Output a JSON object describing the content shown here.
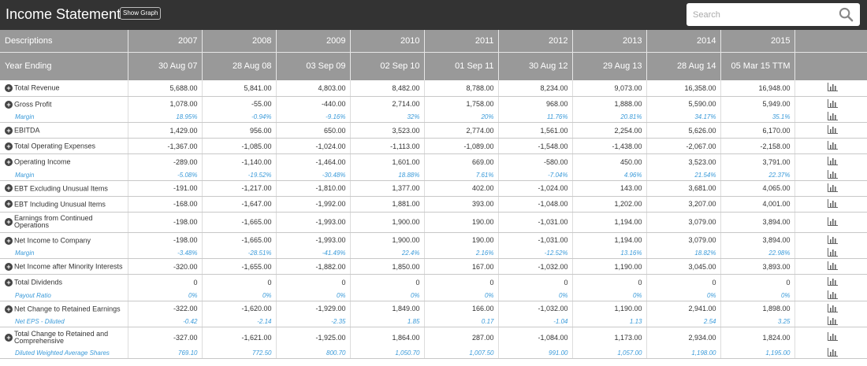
{
  "header": {
    "title": "Income Statement",
    "show_graph_label": "Show Graph",
    "search_placeholder": "Search"
  },
  "columns": {
    "descriptions_label": "Descriptions",
    "year_ending_label": "Year Ending",
    "years": [
      "2007",
      "2008",
      "2009",
      "2010",
      "2011",
      "2012",
      "2013",
      "2014",
      "2015"
    ],
    "year_ending": [
      "30 Aug 07",
      "28 Aug 08",
      "03 Sep 09",
      "02 Sep 10",
      "01 Sep 11",
      "30 Aug 12",
      "29 Aug 13",
      "28 Aug 14",
      "05 Mar 15 TTM"
    ]
  },
  "rows": [
    {
      "label": "Total Revenue",
      "type": "main",
      "values": [
        "5,688.00",
        "5,841.00",
        "4,803.00",
        "8,482.00",
        "8,788.00",
        "8,234.00",
        "9,073.00",
        "16,358.00",
        "16,948.00"
      ]
    },
    {
      "label": "Gross Profit",
      "type": "main",
      "values": [
        "1,078.00",
        "-55.00",
        "-440.00",
        "2,714.00",
        "1,758.00",
        "968.00",
        "1,888.00",
        "5,590.00",
        "5,949.00"
      ]
    },
    {
      "label": "Margin",
      "type": "sub",
      "values": [
        "18.95%",
        "-0.94%",
        "-9.16%",
        "32%",
        "20%",
        "11.76%",
        "20.81%",
        "34.17%",
        "35.1%"
      ]
    },
    {
      "label": "EBITDA",
      "type": "main",
      "values": [
        "1,429.00",
        "956.00",
        "650.00",
        "3,523.00",
        "2,774.00",
        "1,561.00",
        "2,254.00",
        "5,626.00",
        "6,170.00"
      ]
    },
    {
      "label": "Total Operating Expenses",
      "type": "main",
      "values": [
        "-1,367.00",
        "-1,085.00",
        "-1,024.00",
        "-1,113.00",
        "-1,089.00",
        "-1,548.00",
        "-1,438.00",
        "-2,067.00",
        "-2,158.00"
      ]
    },
    {
      "label": "Operating Income",
      "type": "main",
      "values": [
        "-289.00",
        "-1,140.00",
        "-1,464.00",
        "1,601.00",
        "669.00",
        "-580.00",
        "450.00",
        "3,523.00",
        "3,791.00"
      ]
    },
    {
      "label": "Margin",
      "type": "sub",
      "values": [
        "-5.08%",
        "-19.52%",
        "-30.48%",
        "18.88%",
        "7.61%",
        "-7.04%",
        "4.96%",
        "21.54%",
        "22.37%"
      ]
    },
    {
      "label": "EBT Excluding Unusual Items",
      "type": "main",
      "values": [
        "-191.00",
        "-1,217.00",
        "-1,810.00",
        "1,377.00",
        "402.00",
        "-1,024.00",
        "143.00",
        "3,681.00",
        "4,065.00"
      ]
    },
    {
      "label": "EBT Including Unusual Items",
      "type": "main",
      "values": [
        "-168.00",
        "-1,647.00",
        "-1,992.00",
        "1,881.00",
        "393.00",
        "-1,048.00",
        "1,202.00",
        "3,207.00",
        "4,001.00"
      ]
    },
    {
      "label": "Earnings from Continued Operations",
      "type": "main",
      "two_line": true,
      "values": [
        "-198.00",
        "-1,665.00",
        "-1,993.00",
        "1,900.00",
        "190.00",
        "-1,031.00",
        "1,194.00",
        "3,079.00",
        "3,894.00"
      ]
    },
    {
      "label": "Net Income to Company",
      "type": "main",
      "values": [
        "-198.00",
        "-1,665.00",
        "-1,993.00",
        "1,900.00",
        "190.00",
        "-1,031.00",
        "1,194.00",
        "3,079.00",
        "3,894.00"
      ]
    },
    {
      "label": "Margin",
      "type": "sub",
      "values": [
        "-3.48%",
        "-28.51%",
        "-41.49%",
        "22.4%",
        "2.16%",
        "-12.52%",
        "13.16%",
        "18.82%",
        "22.98%"
      ]
    },
    {
      "label": "Net Income after Minority Interests",
      "type": "main",
      "values": [
        "-320.00",
        "-1,655.00",
        "-1,882.00",
        "1,850.00",
        "167.00",
        "-1,032.00",
        "1,190.00",
        "3,045.00",
        "3,893.00"
      ]
    },
    {
      "label": "Total Dividends",
      "type": "main",
      "values": [
        "0",
        "0",
        "0",
        "0",
        "0",
        "0",
        "0",
        "0",
        "0"
      ]
    },
    {
      "label": "Payout Ratio",
      "type": "sub",
      "values": [
        "0%",
        "0%",
        "0%",
        "0%",
        "0%",
        "0%",
        "0%",
        "0%",
        "0%"
      ]
    },
    {
      "label": "Net Change to Retained Earnings",
      "type": "main",
      "values": [
        "-322.00",
        "-1,620.00",
        "-1,929.00",
        "1,849.00",
        "166.00",
        "-1,032.00",
        "1,190.00",
        "2,941.00",
        "1,898.00"
      ]
    },
    {
      "label": "Net EPS - Diluted",
      "type": "sub",
      "values": [
        "-0.42",
        "-2.14",
        "-2.35",
        "1.85",
        "0.17",
        "-1.04",
        "1.13",
        "2.54",
        "3.25"
      ]
    },
    {
      "label": "Total Change to Retained and Comprehensive",
      "type": "main",
      "two_line": true,
      "values": [
        "-327.00",
        "-1,621.00",
        "-1,925.00",
        "1,864.00",
        "287.00",
        "-1,084.00",
        "1,173.00",
        "2,934.00",
        "1,824.00"
      ]
    },
    {
      "label": "Diluted Weighted Average Shares",
      "type": "sub",
      "values": [
        "769.10",
        "772.50",
        "800.70",
        "1,050.70",
        "1,007.50",
        "991.00",
        "1,057.00",
        "1,198.00",
        "1,195.00"
      ]
    }
  ],
  "colors": {
    "topbar": "#333333",
    "header_bg": "#999999",
    "sub_text": "#3a9ad9"
  },
  "icons": {
    "row_action": "bar-chart-icon",
    "expand": "plus-circle-icon",
    "search": "search-icon"
  }
}
